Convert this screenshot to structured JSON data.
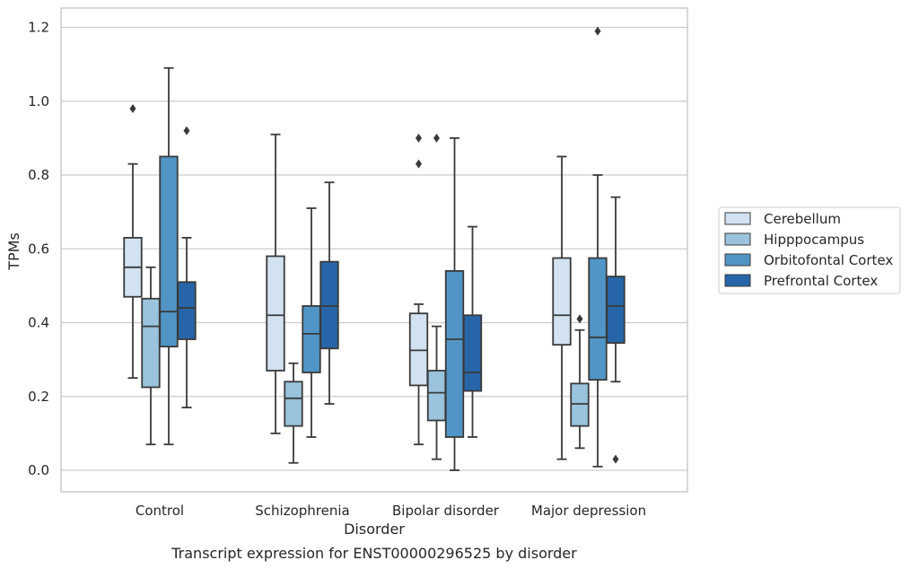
{
  "chart_data": {
    "type": "box",
    "categories": [
      "Control",
      "Schizophrenia",
      "Bipolar disorder",
      "Major depression"
    ],
    "xlabel": "Disorder",
    "ylabel": "TPMs",
    "caption": "Transcript expression for ENST00000296525 by disorder",
    "ylim": [
      -0.055,
      1.25
    ],
    "yticks": [
      0.0,
      0.2,
      0.4,
      0.6,
      0.8,
      1.0,
      1.2
    ],
    "ytick_labels": [
      "0.0",
      "0.2",
      "0.4",
      "0.6",
      "0.8",
      "1.0",
      "1.2"
    ],
    "grid": "horizontal",
    "legend_position": "right",
    "series": [
      {
        "name": "Cerebellum",
        "color": "#d2e2f1",
        "boxes": [
          {
            "whisker_low": 0.25,
            "q1": 0.47,
            "median": 0.55,
            "q3": 0.63,
            "whisker_high": 0.83,
            "outliers": [
              0.98
            ]
          },
          {
            "whisker_low": 0.1,
            "q1": 0.27,
            "median": 0.42,
            "q3": 0.58,
            "whisker_high": 0.91,
            "outliers": []
          },
          {
            "whisker_low": 0.07,
            "q1": 0.23,
            "median": 0.325,
            "q3": 0.425,
            "whisker_high": 0.45,
            "outliers": [
              0.83,
              0.9
            ]
          },
          {
            "whisker_low": 0.03,
            "q1": 0.34,
            "median": 0.42,
            "q3": 0.575,
            "whisker_high": 0.85,
            "outliers": []
          }
        ]
      },
      {
        "name": "Hipppocampus",
        "color": "#9ac3dd",
        "boxes": [
          {
            "whisker_low": 0.07,
            "q1": 0.225,
            "median": 0.39,
            "q3": 0.465,
            "whisker_high": 0.55,
            "outliers": []
          },
          {
            "whisker_low": 0.02,
            "q1": 0.12,
            "median": 0.195,
            "q3": 0.24,
            "whisker_high": 0.29,
            "outliers": []
          },
          {
            "whisker_low": 0.03,
            "q1": 0.135,
            "median": 0.21,
            "q3": 0.27,
            "whisker_high": 0.39,
            "outliers": [
              0.9
            ]
          },
          {
            "whisker_low": 0.06,
            "q1": 0.12,
            "median": 0.18,
            "q3": 0.235,
            "whisker_high": 0.38,
            "outliers": [
              0.41
            ]
          }
        ]
      },
      {
        "name": "Orbitofontal Cortex",
        "color": "#5095c5",
        "boxes": [
          {
            "whisker_low": 0.07,
            "q1": 0.335,
            "median": 0.43,
            "q3": 0.85,
            "whisker_high": 1.09,
            "outliers": []
          },
          {
            "whisker_low": 0.09,
            "q1": 0.265,
            "median": 0.37,
            "q3": 0.445,
            "whisker_high": 0.71,
            "outliers": []
          },
          {
            "whisker_low": 0.0,
            "q1": 0.09,
            "median": 0.355,
            "q3": 0.54,
            "whisker_high": 0.9,
            "outliers": []
          },
          {
            "whisker_low": 0.01,
            "q1": 0.245,
            "median": 0.36,
            "q3": 0.575,
            "whisker_high": 0.8,
            "outliers": [
              1.19
            ]
          }
        ]
      },
      {
        "name": "Prefrontal Cortex",
        "color": "#2666a8",
        "boxes": [
          {
            "whisker_low": 0.17,
            "q1": 0.355,
            "median": 0.44,
            "q3": 0.51,
            "whisker_high": 0.63,
            "outliers": [
              0.92
            ]
          },
          {
            "whisker_low": 0.18,
            "q1": 0.33,
            "median": 0.445,
            "q3": 0.565,
            "whisker_high": 0.78,
            "outliers": []
          },
          {
            "whisker_low": 0.09,
            "q1": 0.215,
            "median": 0.265,
            "q3": 0.42,
            "whisker_high": 0.66,
            "outliers": []
          },
          {
            "whisker_low": 0.24,
            "q1": 0.345,
            "median": 0.445,
            "q3": 0.525,
            "whisker_high": 0.74,
            "outliers": [
              0.03
            ]
          }
        ]
      }
    ]
  }
}
